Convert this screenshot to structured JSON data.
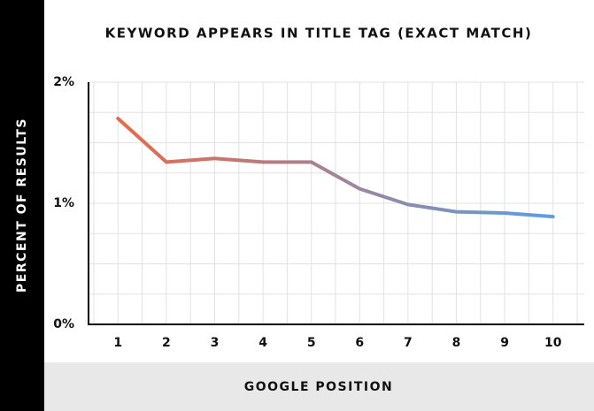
{
  "chart_data": {
    "type": "line",
    "title": "KEYWORD APPEARS IN TITLE TAG (EXACT MATCH)",
    "x_label": "GOOGLE POSITION",
    "y_label": "PERCENT OF RESULTS",
    "categories": [
      "1",
      "2",
      "3",
      "4",
      "5",
      "6",
      "7",
      "8",
      "9",
      "10"
    ],
    "values": [
      1.7,
      1.34,
      1.37,
      1.34,
      1.34,
      1.12,
      0.99,
      0.93,
      0.92,
      0.89
    ],
    "gradient": [
      "#e8694a",
      "#5b9fe3"
    ],
    "ylim": [
      0,
      2
    ],
    "yticks": [
      {
        "value": 0,
        "label": "0%"
      },
      {
        "value": 1,
        "label": "1%"
      },
      {
        "value": 2,
        "label": "2%"
      }
    ],
    "grid": true,
    "minor_grid": 4
  }
}
